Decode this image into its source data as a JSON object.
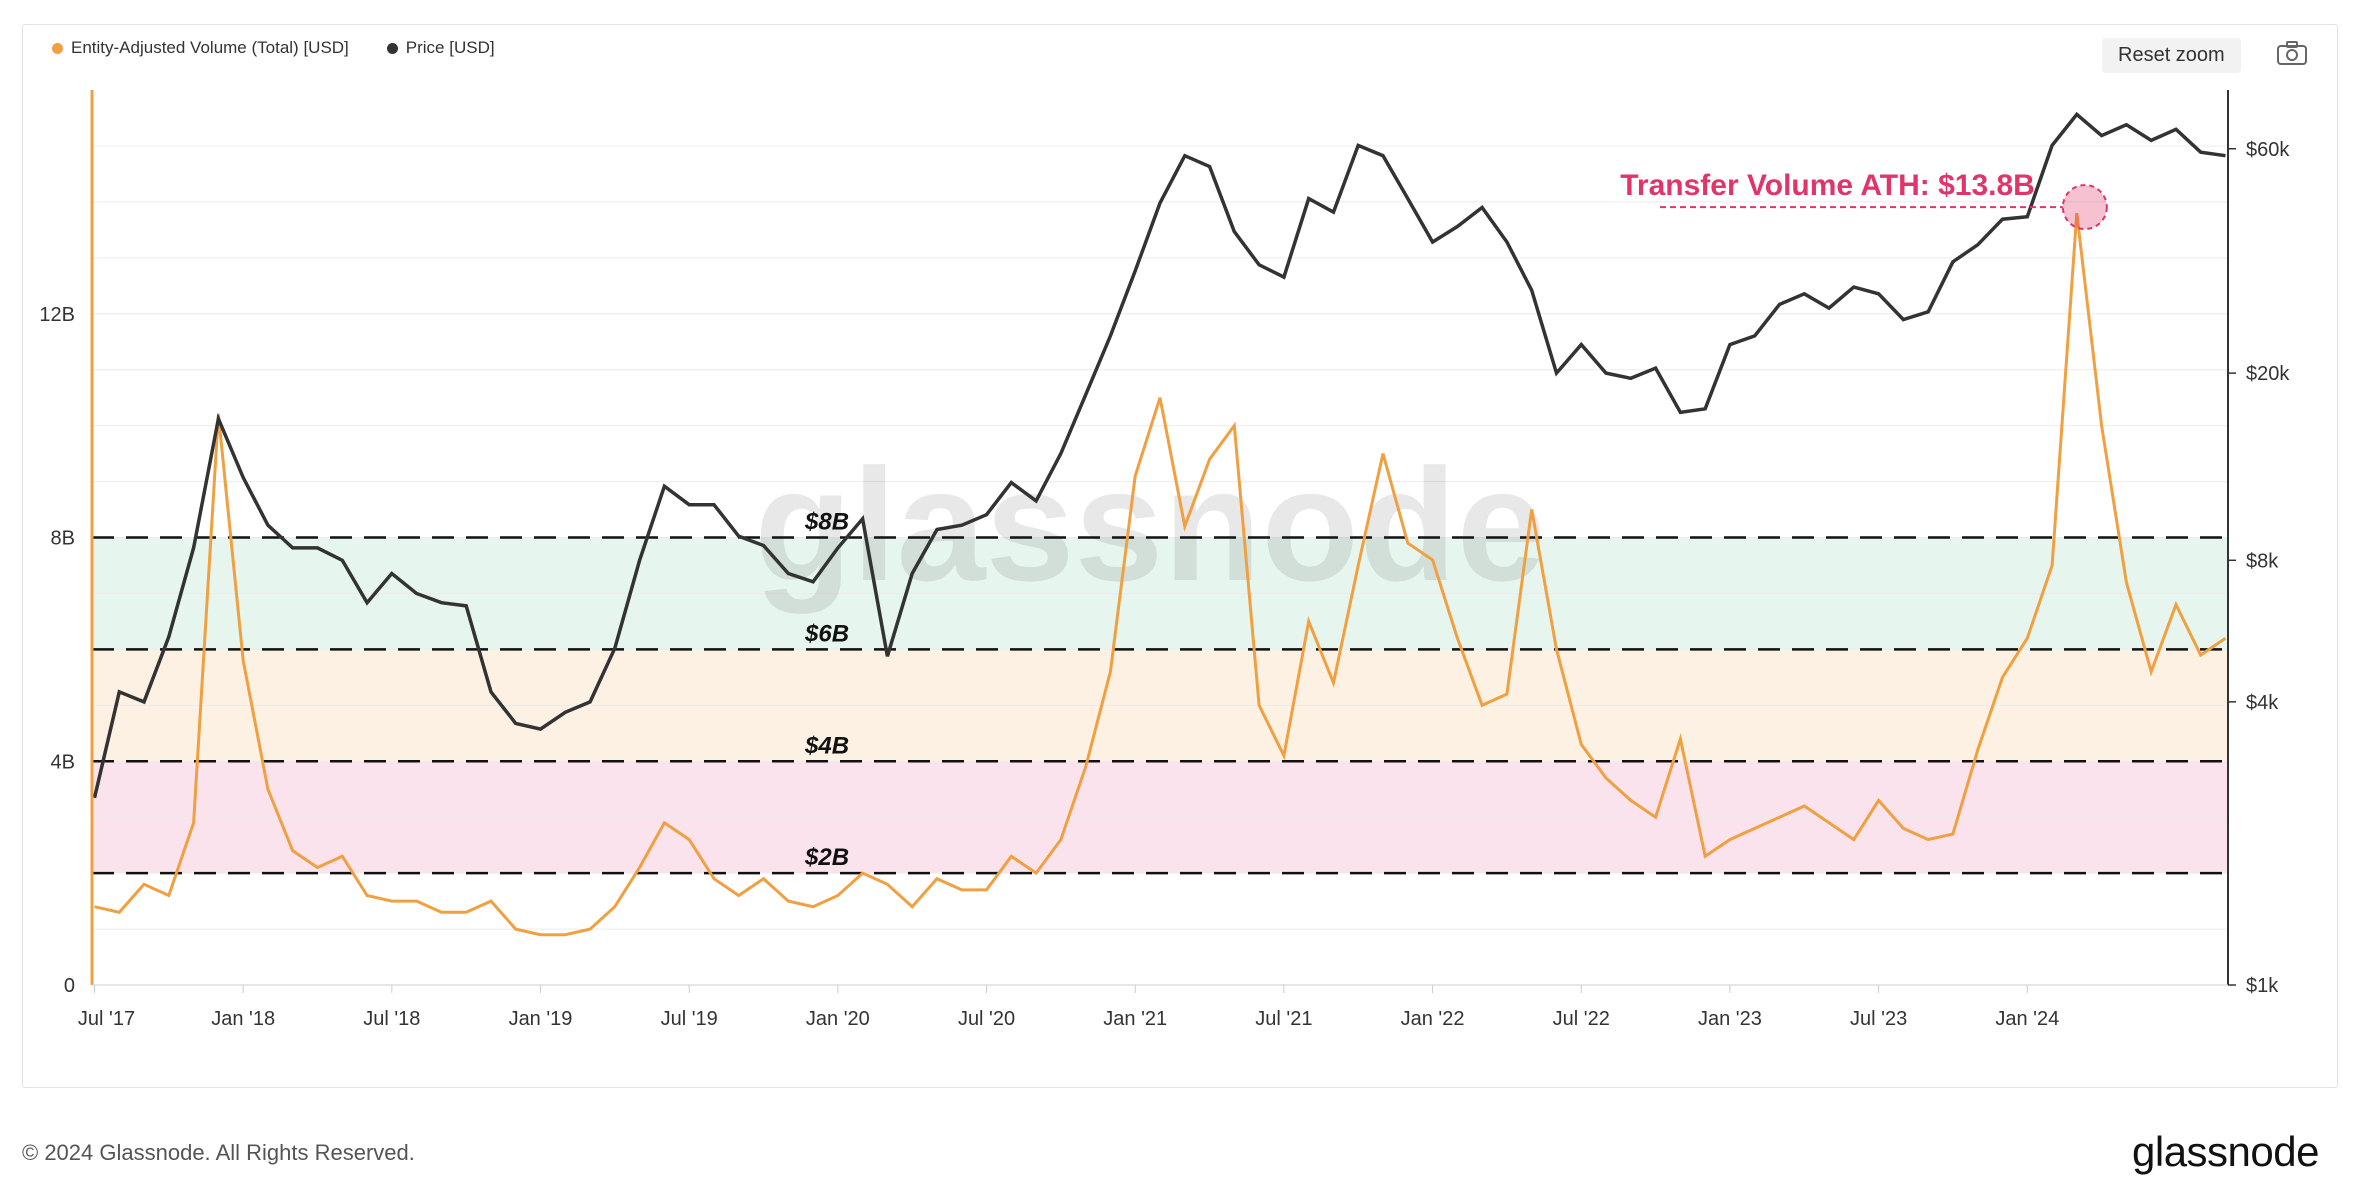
{
  "legend": {
    "volume_label": "Entity-Adjusted Volume (Total) [USD]",
    "price_label": "Price [USD]"
  },
  "toolbar": {
    "reset_zoom_label": "Reset zoom",
    "camera_icon": "camera-icon"
  },
  "footer": {
    "copyright": "© 2024 Glassnode. All Rights Reserved.",
    "logo": "glassnode"
  },
  "watermark": "glassnode",
  "colors": {
    "volume": "#f0a040",
    "price": "#333333",
    "zone_green": "#e6f6ee",
    "zone_orange": "#fdf1e4",
    "zone_pink": "#fbe3ee",
    "annotation": "#e0356a"
  },
  "chart_data": {
    "type": "line",
    "x_range": [
      "2017-07",
      "2024-09"
    ],
    "x_ticks": [
      "Jul '17",
      "Jan '18",
      "Jul '18",
      "Jan '19",
      "Jul '19",
      "Jan '20",
      "Jul '20",
      "Jan '21",
      "Jul '21",
      "Jan '22",
      "Jul '22",
      "Jan '23",
      "Jul '23",
      "Jan '24"
    ],
    "y_left": {
      "ticks": [
        "0",
        "4B",
        "8B",
        "12B"
      ],
      "range": [
        0,
        16
      ]
    },
    "y_right": {
      "scale": "log",
      "ticks": [
        "$1k",
        "$4k",
        "$8k",
        "$20k",
        "$60k"
      ],
      "values": [
        1000,
        4000,
        8000,
        20000,
        60000
      ],
      "range": [
        1000,
        80000
      ]
    },
    "zones": [
      {
        "from": 6,
        "to": 8,
        "color": "zone_green"
      },
      {
        "from": 4,
        "to": 6,
        "color": "zone_orange"
      },
      {
        "from": 2,
        "to": 4,
        "color": "zone_pink"
      }
    ],
    "levels": [
      {
        "value": 8,
        "label": "$8B"
      },
      {
        "value": 6,
        "label": "$6B"
      },
      {
        "value": 4,
        "label": "$4B"
      },
      {
        "value": 2,
        "label": "$2B"
      }
    ],
    "annotation": {
      "text": "Transfer Volume ATH: $13.8B",
      "date": "2024-03",
      "value": 13.8
    },
    "series": [
      {
        "name": "Entity-Adjusted Volume (Total) [USD]",
        "unit": "B USD",
        "points": [
          [
            "2017-07",
            1.4
          ],
          [
            "2017-08",
            1.3
          ],
          [
            "2017-09",
            1.8
          ],
          [
            "2017-10",
            1.6
          ],
          [
            "2017-11",
            2.9
          ],
          [
            "2017-12",
            10.2
          ],
          [
            "2018-01",
            5.8
          ],
          [
            "2018-02",
            3.5
          ],
          [
            "2018-03",
            2.4
          ],
          [
            "2018-04",
            2.1
          ],
          [
            "2018-05",
            2.3
          ],
          [
            "2018-06",
            1.6
          ],
          [
            "2018-07",
            1.5
          ],
          [
            "2018-08",
            1.5
          ],
          [
            "2018-09",
            1.3
          ],
          [
            "2018-10",
            1.3
          ],
          [
            "2018-11",
            1.5
          ],
          [
            "2018-12",
            1.0
          ],
          [
            "2019-01",
            0.9
          ],
          [
            "2019-02",
            0.9
          ],
          [
            "2019-03",
            1.0
          ],
          [
            "2019-04",
            1.4
          ],
          [
            "2019-05",
            2.1
          ],
          [
            "2019-06",
            2.9
          ],
          [
            "2019-07",
            2.6
          ],
          [
            "2019-08",
            1.9
          ],
          [
            "2019-09",
            1.6
          ],
          [
            "2019-10",
            1.9
          ],
          [
            "2019-11",
            1.5
          ],
          [
            "2019-12",
            1.4
          ],
          [
            "2020-01",
            1.6
          ],
          [
            "2020-02",
            2.0
          ],
          [
            "2020-03",
            1.8
          ],
          [
            "2020-04",
            1.4
          ],
          [
            "2020-05",
            1.9
          ],
          [
            "2020-06",
            1.7
          ],
          [
            "2020-07",
            1.7
          ],
          [
            "2020-08",
            2.3
          ],
          [
            "2020-09",
            2.0
          ],
          [
            "2020-10",
            2.6
          ],
          [
            "2020-11",
            3.9
          ],
          [
            "2020-12",
            5.6
          ],
          [
            "2021-01",
            9.1
          ],
          [
            "2021-02",
            10.5
          ],
          [
            "2021-03",
            8.2
          ],
          [
            "2021-04",
            9.4
          ],
          [
            "2021-05",
            10.0
          ],
          [
            "2021-06",
            5.0
          ],
          [
            "2021-07",
            4.1
          ],
          [
            "2021-08",
            6.5
          ],
          [
            "2021-09",
            5.4
          ],
          [
            "2021-10",
            7.5
          ],
          [
            "2021-11",
            9.5
          ],
          [
            "2021-12",
            7.9
          ],
          [
            "2022-01",
            7.6
          ],
          [
            "2022-02",
            6.2
          ],
          [
            "2022-03",
            5.0
          ],
          [
            "2022-04",
            5.2
          ],
          [
            "2022-05",
            8.5
          ],
          [
            "2022-06",
            6.0
          ],
          [
            "2022-07",
            4.3
          ],
          [
            "2022-08",
            3.7
          ],
          [
            "2022-09",
            3.3
          ],
          [
            "2022-10",
            3.0
          ],
          [
            "2022-11",
            4.4
          ],
          [
            "2022-12",
            2.3
          ],
          [
            "2023-01",
            2.6
          ],
          [
            "2023-02",
            2.8
          ],
          [
            "2023-03",
            3.0
          ],
          [
            "2023-04",
            3.2
          ],
          [
            "2023-05",
            2.9
          ],
          [
            "2023-06",
            2.6
          ],
          [
            "2023-07",
            3.3
          ],
          [
            "2023-08",
            2.8
          ],
          [
            "2023-09",
            2.6
          ],
          [
            "2023-10",
            2.7
          ],
          [
            "2023-11",
            4.2
          ],
          [
            "2023-12",
            5.5
          ],
          [
            "2024-01",
            6.2
          ],
          [
            "2024-02",
            7.5
          ],
          [
            "2024-03",
            13.8
          ],
          [
            "2024-04",
            10.0
          ],
          [
            "2024-05",
            7.2
          ],
          [
            "2024-06",
            5.6
          ],
          [
            "2024-07",
            6.8
          ],
          [
            "2024-08",
            5.9
          ],
          [
            "2024-09",
            6.2
          ]
        ]
      },
      {
        "name": "Price [USD]",
        "unit": "USD",
        "points": [
          [
            "2017-07",
            2500
          ],
          [
            "2017-08",
            4200
          ],
          [
            "2017-09",
            4000
          ],
          [
            "2017-10",
            5500
          ],
          [
            "2017-11",
            8500
          ],
          [
            "2017-12",
            16000
          ],
          [
            "2018-01",
            12000
          ],
          [
            "2018-02",
            9500
          ],
          [
            "2018-03",
            8500
          ],
          [
            "2018-04",
            8500
          ],
          [
            "2018-05",
            8000
          ],
          [
            "2018-06",
            6500
          ],
          [
            "2018-07",
            7500
          ],
          [
            "2018-08",
            6800
          ],
          [
            "2018-09",
            6500
          ],
          [
            "2018-10",
            6400
          ],
          [
            "2018-11",
            4200
          ],
          [
            "2018-12",
            3600
          ],
          [
            "2019-01",
            3500
          ],
          [
            "2019-02",
            3800
          ],
          [
            "2019-03",
            4000
          ],
          [
            "2019-04",
            5200
          ],
          [
            "2019-05",
            8000
          ],
          [
            "2019-06",
            11500
          ],
          [
            "2019-07",
            10500
          ],
          [
            "2019-08",
            10500
          ],
          [
            "2019-09",
            9000
          ],
          [
            "2019-10",
            8600
          ],
          [
            "2019-11",
            7500
          ],
          [
            "2019-12",
            7200
          ],
          [
            "2020-01",
            8500
          ],
          [
            "2020-02",
            9800
          ],
          [
            "2020-03",
            5000
          ],
          [
            "2020-04",
            7500
          ],
          [
            "2020-05",
            9300
          ],
          [
            "2020-06",
            9500
          ],
          [
            "2020-07",
            10000
          ],
          [
            "2020-08",
            11700
          ],
          [
            "2020-09",
            10700
          ],
          [
            "2020-10",
            13500
          ],
          [
            "2020-11",
            18000
          ],
          [
            "2020-12",
            24000
          ],
          [
            "2021-01",
            33000
          ],
          [
            "2021-02",
            46000
          ],
          [
            "2021-03",
            58000
          ],
          [
            "2021-04",
            55000
          ],
          [
            "2021-05",
            40000
          ],
          [
            "2021-06",
            34000
          ],
          [
            "2021-07",
            32000
          ],
          [
            "2021-08",
            47000
          ],
          [
            "2021-09",
            44000
          ],
          [
            "2021-10",
            61000
          ],
          [
            "2021-11",
            58000
          ],
          [
            "2021-12",
            47000
          ],
          [
            "2022-01",
            38000
          ],
          [
            "2022-02",
            41000
          ],
          [
            "2022-03",
            45000
          ],
          [
            "2022-04",
            38000
          ],
          [
            "2022-05",
            30000
          ],
          [
            "2022-06",
            20000
          ],
          [
            "2022-07",
            23000
          ],
          [
            "2022-08",
            20000
          ],
          [
            "2022-09",
            19500
          ],
          [
            "2022-10",
            20500
          ],
          [
            "2022-11",
            16500
          ],
          [
            "2022-12",
            16800
          ],
          [
            "2023-01",
            23000
          ],
          [
            "2023-02",
            24000
          ],
          [
            "2023-03",
            28000
          ],
          [
            "2023-04",
            29500
          ],
          [
            "2023-05",
            27500
          ],
          [
            "2023-06",
            30500
          ],
          [
            "2023-07",
            29500
          ],
          [
            "2023-08",
            26000
          ],
          [
            "2023-09",
            27000
          ],
          [
            "2023-10",
            34500
          ],
          [
            "2023-11",
            37500
          ],
          [
            "2023-12",
            42500
          ],
          [
            "2024-01",
            43000
          ],
          [
            "2024-02",
            61000
          ],
          [
            "2024-03",
            71000
          ],
          [
            "2024-04",
            64000
          ],
          [
            "2024-05",
            67500
          ],
          [
            "2024-06",
            62500
          ],
          [
            "2024-07",
            66000
          ],
          [
            "2024-08",
            59000
          ],
          [
            "2024-09",
            58000
          ]
        ]
      }
    ]
  }
}
